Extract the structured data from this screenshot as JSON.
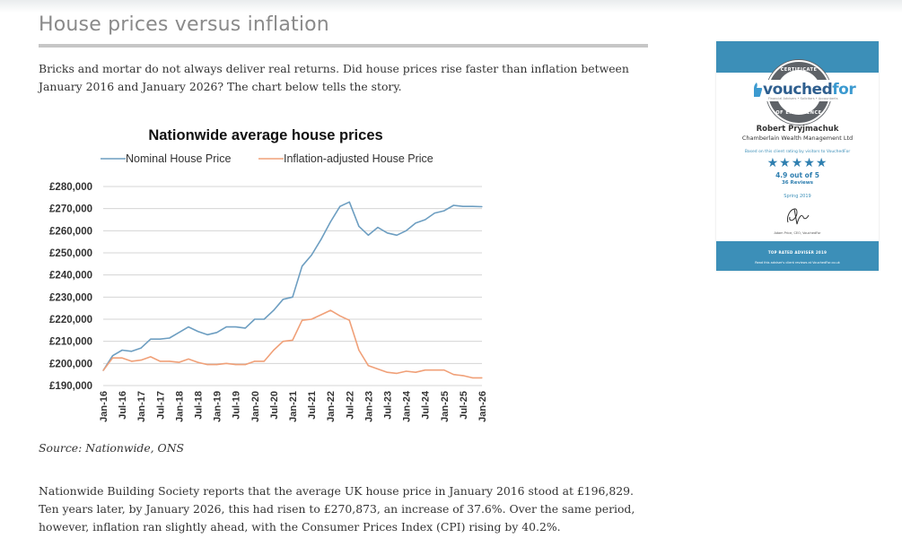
{
  "article": {
    "title": "House prices versus inflation",
    "intro": "Bricks and mortar do not always deliver real returns. Did house prices rise faster than inflation between January 2016 and January 2026? The chart below tells the story.",
    "source": "Source: Nationwide, ONS",
    "closing": "Nationwide Building Society reports that the average UK house price in January 2016 stood at £196,829. Ten years later, by January 2026, this had risen to £270,873, an increase of 37.6%. Over the same period, however, inflation ran slightly ahead, with the Consumer Prices Index (CPI) rising by 40.2%."
  },
  "badge": {
    "seal_top": "CERTIFICATE",
    "seal_bottom": "OF EXCELLENCE",
    "brand_a": "vouched",
    "brand_b": "for",
    "brand_sub": "Financial Advisers • Solicitors • Accountants",
    "adviser_name": "Robert Pryjmachuk",
    "company": "Chamberlain Wealth Management Ltd",
    "based_on": "Based on this client rating by visitors to VouchedFor",
    "stars": "★★★★★",
    "rating": "4.9 out of 5",
    "reviews": "36 Reviews",
    "season": "Spring 2019",
    "signatory": "Adam Price, CEO, VouchedFor",
    "top_rated": "TOP RATED ADVISER 2019",
    "read_reviews": "Read this adviser's client reviews at VouchedFor.co.uk",
    "accent_color": "#3c8fb8"
  },
  "chart_data": {
    "type": "line",
    "title": "Nationwide average house prices",
    "xlabel": "",
    "ylabel": "",
    "ylim": [
      190000,
      280000
    ],
    "y_ticks": [
      190000,
      200000,
      210000,
      220000,
      230000,
      240000,
      250000,
      260000,
      270000,
      280000
    ],
    "y_tick_labels": [
      "£190,000",
      "£200,000",
      "£210,000",
      "£220,000",
      "£230,000",
      "£240,000",
      "£250,000",
      "£260,000",
      "£270,000",
      "£280,000"
    ],
    "x_tick_labels": [
      "Jan-16",
      "Jul-16",
      "Jan-17",
      "Jul-17",
      "Jan-18",
      "Jul-18",
      "Jan-19",
      "Jul-19",
      "Jan-20",
      "Jul-20",
      "Jan-21",
      "Jul-21",
      "Jan-22",
      "Jul-22",
      "Jan-23",
      "Jul-23",
      "Jan-24",
      "Jul-24",
      "Jan-25",
      "Jul-25",
      "Jan-26"
    ],
    "grid": true,
    "legend_position": "top",
    "x": [
      "Jan-16",
      "Apr-16",
      "Jul-16",
      "Oct-16",
      "Jan-17",
      "Apr-17",
      "Jul-17",
      "Oct-17",
      "Jan-18",
      "Apr-18",
      "Jul-18",
      "Oct-18",
      "Jan-19",
      "Apr-19",
      "Jul-19",
      "Oct-19",
      "Jan-20",
      "Apr-20",
      "Jul-20",
      "Oct-20",
      "Jan-21",
      "Apr-21",
      "Jul-21",
      "Oct-21",
      "Jan-22",
      "Apr-22",
      "Jul-22",
      "Oct-22",
      "Jan-23",
      "Apr-23",
      "Jul-23",
      "Oct-23",
      "Jan-24",
      "Apr-24",
      "Jul-24",
      "Oct-24",
      "Jan-25",
      "Apr-25",
      "Jul-25",
      "Oct-25",
      "Jan-26"
    ],
    "series": [
      {
        "name": "Nominal House Price",
        "color": "#6d9ec1",
        "values": [
          196829,
          203500,
          206000,
          205500,
          207000,
          211000,
          211000,
          211500,
          214000,
          216500,
          214500,
          213000,
          214000,
          216500,
          216500,
          216000,
          220000,
          220000,
          224000,
          229000,
          230000,
          244000,
          249000,
          256000,
          264000,
          271000,
          273000,
          262000,
          258000,
          261500,
          259000,
          258000,
          260000,
          263500,
          265000,
          268000,
          269000,
          271500,
          271000,
          271000,
          270873
        ]
      },
      {
        "name": "Inflation-adjusted House Price",
        "color": "#f0a078",
        "values": [
          196829,
          202500,
          202500,
          201000,
          201500,
          203000,
          201000,
          201000,
          200500,
          202000,
          200500,
          199500,
          199500,
          200000,
          199500,
          199500,
          201000,
          201000,
          206000,
          210000,
          210500,
          219500,
          220000,
          222000,
          224000,
          221500,
          219500,
          206000,
          199000,
          197500,
          196000,
          195500,
          196500,
          196000,
          197000,
          197000,
          197000,
          195000,
          194500,
          193500,
          193500
        ]
      }
    ]
  }
}
